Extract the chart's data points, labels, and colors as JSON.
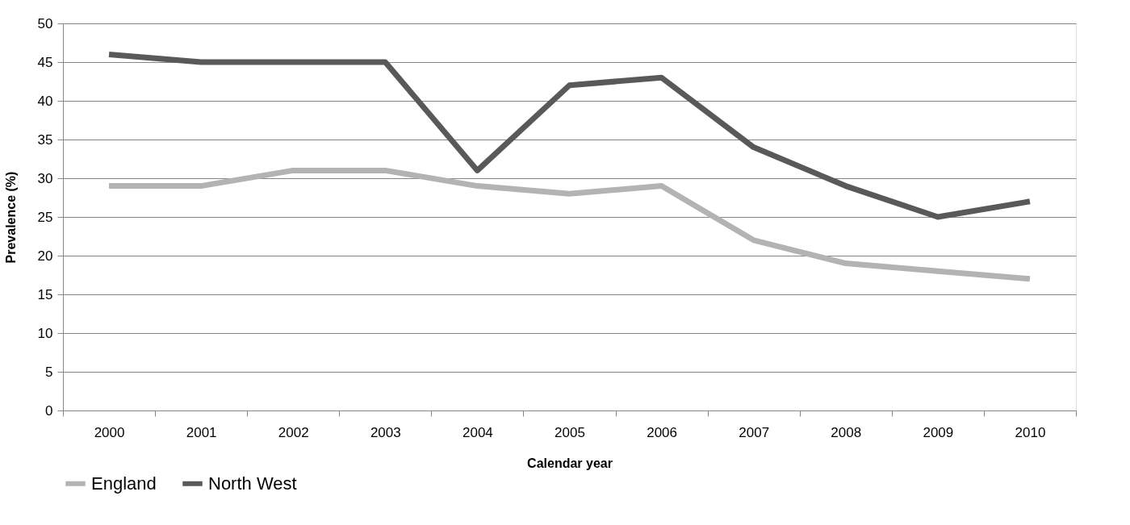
{
  "chart_data": {
    "type": "line",
    "xlabel": "Calendar year",
    "ylabel": "Prevalence (%)",
    "categories": [
      "2000",
      "2001",
      "2002",
      "2003",
      "2004",
      "2005",
      "2006",
      "2007",
      "2008",
      "2009",
      "2010"
    ],
    "series": [
      {
        "name": "England",
        "color": "#b3b3b3",
        "values": [
          29,
          29,
          31,
          31,
          29,
          28,
          29,
          22,
          19,
          18,
          17
        ]
      },
      {
        "name": "North West",
        "color": "#595959",
        "values": [
          46,
          45,
          45,
          45,
          31,
          42,
          43,
          34,
          29,
          25,
          27
        ]
      }
    ],
    "ylim": [
      0,
      50
    ],
    "yticks": [
      0,
      5,
      10,
      15,
      20,
      25,
      30,
      35,
      40,
      45,
      50
    ],
    "grid": "y",
    "legend": "bottom"
  }
}
